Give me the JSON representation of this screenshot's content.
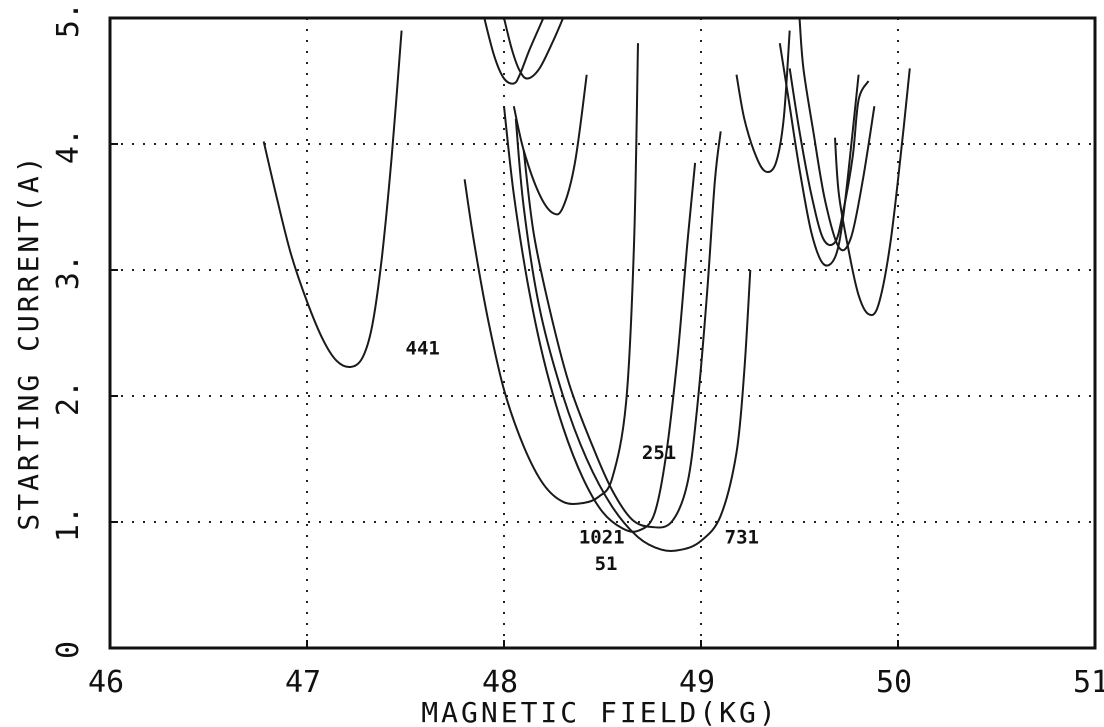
{
  "chart_data": {
    "type": "line",
    "xlabel": "MAGNETIC FIELD(KG)",
    "ylabel": "STARTING CURRENT(A)",
    "xlim": [
      46,
      51
    ],
    "ylim": [
      0,
      5
    ],
    "x_ticks": [
      "46",
      "47",
      "48",
      "49",
      "50",
      "51"
    ],
    "y_ticks": [
      "0",
      "1.",
      "2.",
      "3.",
      "4.",
      "5."
    ],
    "grid": true,
    "series": [
      {
        "name": "441",
        "label_at": [
          47.5,
          2.33
        ],
        "points": [
          [
            46.78,
            4.02
          ],
          [
            46.85,
            3.55
          ],
          [
            46.92,
            3.12
          ],
          [
            47.0,
            2.75
          ],
          [
            47.08,
            2.45
          ],
          [
            47.15,
            2.28
          ],
          [
            47.22,
            2.23
          ],
          [
            47.28,
            2.3
          ],
          [
            47.33,
            2.55
          ],
          [
            47.38,
            3.1
          ],
          [
            47.43,
            3.9
          ],
          [
            47.48,
            4.9
          ]
        ]
      },
      {
        "name": "251",
        "label_at": [
          48.7,
          1.5
        ],
        "points": [
          [
            48.0,
            4.3
          ],
          [
            48.05,
            3.6
          ],
          [
            48.12,
            2.9
          ],
          [
            48.2,
            2.3
          ],
          [
            48.3,
            1.75
          ],
          [
            48.4,
            1.35
          ],
          [
            48.5,
            1.08
          ],
          [
            48.6,
            0.95
          ],
          [
            48.68,
            0.93
          ],
          [
            48.76,
            1.05
          ],
          [
            48.82,
            1.5
          ],
          [
            48.88,
            2.3
          ],
          [
            48.93,
            3.2
          ],
          [
            48.97,
            3.85
          ]
        ]
      },
      {
        "name": "1021",
        "label_at": [
          48.38,
          0.83
        ],
        "points": [
          [
            47.8,
            3.72
          ],
          [
            47.85,
            3.2
          ],
          [
            47.92,
            2.6
          ],
          [
            48.0,
            2.05
          ],
          [
            48.1,
            1.6
          ],
          [
            48.2,
            1.3
          ],
          [
            48.3,
            1.16
          ],
          [
            48.4,
            1.15
          ],
          [
            48.48,
            1.2
          ],
          [
            48.55,
            1.35
          ],
          [
            48.62,
            1.95
          ],
          [
            48.66,
            3.2
          ],
          [
            48.68,
            4.8
          ]
        ]
      },
      {
        "name": "731",
        "label_at": [
          49.12,
          0.83
        ],
        "points": [
          [
            48.06,
            4.2
          ],
          [
            48.1,
            3.5
          ],
          [
            48.18,
            2.7
          ],
          [
            48.3,
            2.0
          ],
          [
            48.42,
            1.5
          ],
          [
            48.55,
            1.12
          ],
          [
            48.68,
            0.88
          ],
          [
            48.8,
            0.78
          ],
          [
            48.9,
            0.78
          ],
          [
            49.0,
            0.85
          ],
          [
            49.1,
            1.05
          ],
          [
            49.18,
            1.55
          ],
          [
            49.22,
            2.2
          ],
          [
            49.25,
            3.0
          ]
        ]
      },
      {
        "name": "51",
        "label_at": [
          48.46,
          0.62
        ],
        "points": [
          [
            48.1,
            3.95
          ],
          [
            48.15,
            3.3
          ],
          [
            48.23,
            2.7
          ],
          [
            48.33,
            2.1
          ],
          [
            48.45,
            1.6
          ],
          [
            48.55,
            1.25
          ],
          [
            48.65,
            1.02
          ],
          [
            48.75,
            0.96
          ],
          [
            48.85,
            1.0
          ],
          [
            48.93,
            1.3
          ],
          [
            48.98,
            1.9
          ],
          [
            49.03,
            2.8
          ],
          [
            49.07,
            3.7
          ],
          [
            49.1,
            4.1
          ]
        ]
      },
      {
        "points": [
          [
            47.9,
            5.0
          ],
          [
            47.95,
            4.7
          ],
          [
            48.0,
            4.52
          ],
          [
            48.05,
            4.48
          ],
          [
            48.08,
            4.55
          ],
          [
            48.13,
            4.75
          ],
          [
            48.2,
            5.0
          ]
        ]
      },
      {
        "points": [
          [
            48.0,
            5.0
          ],
          [
            48.04,
            4.75
          ],
          [
            48.08,
            4.58
          ],
          [
            48.12,
            4.52
          ],
          [
            48.18,
            4.6
          ],
          [
            48.25,
            4.82
          ],
          [
            48.3,
            5.0
          ]
        ]
      },
      {
        "points": [
          [
            48.05,
            4.3
          ],
          [
            48.1,
            3.95
          ],
          [
            48.18,
            3.6
          ],
          [
            48.25,
            3.45
          ],
          [
            48.3,
            3.5
          ],
          [
            48.36,
            3.85
          ],
          [
            48.42,
            4.55
          ]
        ]
      },
      {
        "points": [
          [
            49.18,
            4.55
          ],
          [
            49.22,
            4.2
          ],
          [
            49.28,
            3.9
          ],
          [
            49.33,
            3.78
          ],
          [
            49.38,
            3.85
          ],
          [
            49.42,
            4.2
          ],
          [
            49.45,
            4.9
          ]
        ]
      },
      {
        "points": [
          [
            49.4,
            4.8
          ],
          [
            49.45,
            4.3
          ],
          [
            49.5,
            3.8
          ],
          [
            49.56,
            3.3
          ],
          [
            49.62,
            3.05
          ],
          [
            49.68,
            3.1
          ],
          [
            49.72,
            3.4
          ],
          [
            49.77,
            4.1
          ],
          [
            49.8,
            4.55
          ]
        ]
      },
      {
        "points": [
          [
            49.45,
            4.6
          ],
          [
            49.5,
            4.1
          ],
          [
            49.56,
            3.6
          ],
          [
            49.62,
            3.25
          ],
          [
            49.68,
            3.22
          ],
          [
            49.72,
            3.45
          ],
          [
            49.77,
            3.9
          ],
          [
            49.8,
            4.35
          ],
          [
            49.85,
            4.5
          ]
        ]
      },
      {
        "points": [
          [
            49.5,
            5.0
          ],
          [
            49.52,
            4.6
          ],
          [
            49.57,
            4.1
          ],
          [
            49.63,
            3.55
          ],
          [
            49.7,
            3.18
          ],
          [
            49.76,
            3.25
          ],
          [
            49.82,
            3.7
          ],
          [
            49.88,
            4.3
          ]
        ]
      },
      {
        "points": [
          [
            49.68,
            4.05
          ],
          [
            49.7,
            3.6
          ],
          [
            49.75,
            3.15
          ],
          [
            49.8,
            2.8
          ],
          [
            49.85,
            2.65
          ],
          [
            49.9,
            2.72
          ],
          [
            49.96,
            3.2
          ],
          [
            50.02,
            4.0
          ],
          [
            50.06,
            4.6
          ]
        ]
      }
    ]
  }
}
